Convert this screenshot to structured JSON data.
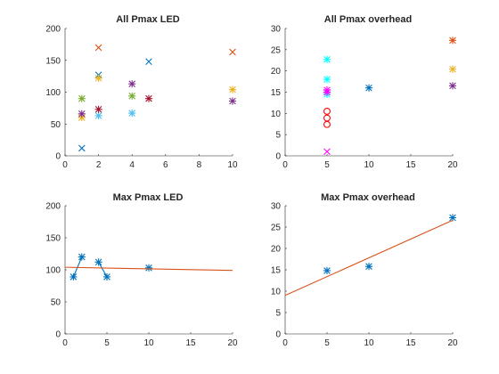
{
  "colors": {
    "c1": "#0072BD",
    "c2": "#D95319",
    "c3": "#EDB120",
    "c4": "#7E2F8E",
    "c5": "#77AC30",
    "c6": "#4DBEEE",
    "c7": "#A2142F",
    "cyan": "#00FFFF",
    "magenta": "#FF00FF",
    "red": "#FF0000",
    "axis": "#262626",
    "background": "#ffffff"
  },
  "chart_data": [
    {
      "id": "tl",
      "type": "scatter",
      "title": "All Pmax LED",
      "xlabel": "",
      "ylabel": "",
      "xlim": [
        0,
        10
      ],
      "ylim": [
        0,
        200
      ],
      "xticks": [
        0,
        2,
        4,
        6,
        8,
        10
      ],
      "yticks": [
        0,
        50,
        100,
        150,
        200
      ],
      "grid": false,
      "legend": "none",
      "series": [
        {
          "marker": "x",
          "color": "c1",
          "points": [
            [
              1,
              12
            ],
            [
              2,
              127
            ],
            [
              5,
              148
            ]
          ]
        },
        {
          "marker": "x",
          "color": "c2",
          "points": [
            [
              2,
              170
            ],
            [
              10,
              163
            ]
          ]
        },
        {
          "marker": "asterisk",
          "color": "c3",
          "points": [
            [
              1,
              60
            ],
            [
              2,
              122
            ],
            [
              10,
              104
            ]
          ]
        },
        {
          "marker": "asterisk",
          "color": "c4",
          "points": [
            [
              1,
              66
            ],
            [
              4,
              113
            ],
            [
              10,
              86
            ]
          ]
        },
        {
          "marker": "asterisk",
          "color": "c5",
          "points": [
            [
              1,
              90
            ],
            [
              4,
              94
            ]
          ]
        },
        {
          "marker": "asterisk",
          "color": "c6",
          "points": [
            [
              2,
              63
            ],
            [
              4,
              67
            ]
          ]
        },
        {
          "marker": "asterisk",
          "color": "c7",
          "points": [
            [
              2,
              73
            ],
            [
              5,
              90
            ]
          ]
        }
      ]
    },
    {
      "id": "tr",
      "type": "scatter",
      "title": "All Pmax overhead",
      "xlabel": "",
      "ylabel": "",
      "xlim": [
        0,
        20
      ],
      "ylim": [
        0,
        30
      ],
      "xticks": [
        0,
        5,
        10,
        15,
        20
      ],
      "yticks": [
        0,
        5,
        10,
        15,
        20,
        25,
        30
      ],
      "grid": false,
      "legend": "none",
      "series": [
        {
          "marker": "asterisk",
          "color": "cyan",
          "points": [
            [
              5,
              22.7
            ],
            [
              5,
              18.0
            ],
            [
              5,
              14.5
            ]
          ]
        },
        {
          "marker": "asterisk",
          "color": "magenta",
          "points": [
            [
              5,
              15.5
            ],
            [
              5,
              15.0
            ]
          ]
        },
        {
          "marker": "circle",
          "color": "red",
          "points": [
            [
              5,
              10.5
            ],
            [
              5,
              8.9
            ],
            [
              5,
              7.4
            ]
          ]
        },
        {
          "marker": "x",
          "color": "magenta",
          "points": [
            [
              5,
              1.0
            ]
          ]
        },
        {
          "marker": "asterisk",
          "color": "c1",
          "points": [
            [
              10,
              16.0
            ]
          ]
        },
        {
          "marker": "asterisk",
          "color": "c2",
          "points": [
            [
              20,
              27.2
            ]
          ]
        },
        {
          "marker": "asterisk",
          "color": "c3",
          "points": [
            [
              20,
              20.4
            ]
          ]
        },
        {
          "marker": "asterisk",
          "color": "c4",
          "points": [
            [
              20,
              16.5
            ]
          ]
        }
      ]
    },
    {
      "id": "bl",
      "type": "line",
      "title": "Max Pmax LED",
      "xlabel": "",
      "ylabel": "",
      "xlim": [
        0,
        20
      ],
      "ylim": [
        0,
        200
      ],
      "xticks": [
        0,
        5,
        10,
        15,
        20
      ],
      "yticks": [
        0,
        50,
        100,
        150,
        200
      ],
      "grid": false,
      "legend": "none",
      "series": [
        {
          "marker": "asterisk",
          "color": "c1",
          "line": true,
          "points": [
            [
              1,
              89
            ],
            [
              2,
              120
            ]
          ]
        },
        {
          "marker": "asterisk",
          "color": "c1",
          "line": true,
          "points": [
            [
              4,
              112
            ],
            [
              5,
              89
            ]
          ]
        },
        {
          "marker": "asterisk",
          "color": "c1",
          "line": false,
          "points": [
            [
              10,
              103
            ]
          ]
        },
        {
          "marker": "none",
          "color": "c2",
          "line": true,
          "points": [
            [
              0,
              104
            ],
            [
              20,
              99
            ]
          ]
        }
      ]
    },
    {
      "id": "br",
      "type": "line",
      "title": "Max Pmax overhead",
      "xlabel": "",
      "ylabel": "",
      "xlim": [
        0,
        20
      ],
      "ylim": [
        0,
        30
      ],
      "xticks": [
        0,
        5,
        10,
        15,
        20
      ],
      "yticks": [
        0,
        5,
        10,
        15,
        20,
        25,
        30
      ],
      "grid": false,
      "legend": "none",
      "series": [
        {
          "marker": "asterisk",
          "color": "c1",
          "line": false,
          "points": [
            [
              5,
              14.8
            ],
            [
              10,
              15.8
            ],
            [
              20,
              27.2
            ]
          ]
        },
        {
          "marker": "none",
          "color": "c2",
          "line": true,
          "points": [
            [
              0,
              9.0
            ],
            [
              20,
              26.6
            ]
          ]
        }
      ]
    }
  ]
}
